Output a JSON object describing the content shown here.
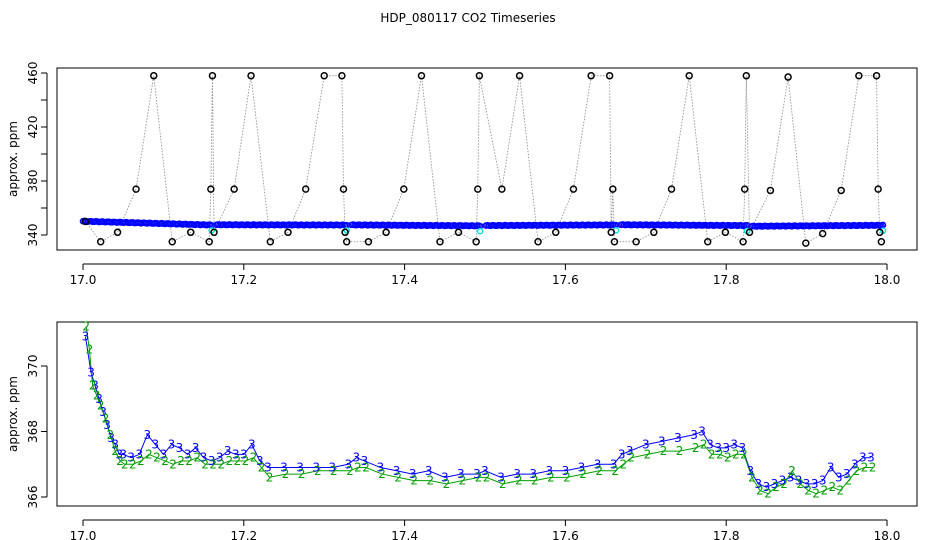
{
  "title": "HDP_080117  CO2 Timeseries",
  "chart_data": [
    {
      "type": "scatter",
      "title": "HDP_080117  CO2 Timeseries",
      "xlabel": "",
      "ylabel": "approx. ppm",
      "xlim": [
        17.0,
        18.0
      ],
      "ylim": [
        331,
        462
      ],
      "x_ticks": [
        17.0,
        17.2,
        17.4,
        17.6,
        17.8,
        18.0
      ],
      "x_tick_labels": [
        "17.0",
        "17.2",
        "17.4",
        "17.6",
        "17.8",
        "18.0"
      ],
      "y_ticks": [
        340,
        360,
        380,
        400,
        420,
        440,
        460
      ],
      "y_tick_labels": [
        "340",
        "",
        "380",
        "",
        "420",
        "",
        "460"
      ],
      "grid": false,
      "series": [
        {
          "style": "blue-points",
          "color": "#0000ff",
          "segments": [
            {
              "x_start": 17.0,
              "x_end": 17.16,
              "y_start": 350.2,
              "y_end": 347.4
            },
            {
              "x_start": 17.166,
              "x_end": 17.328,
              "y_start": 347.6,
              "y_end": 347.4
            },
            {
              "x_start": 17.334,
              "x_end": 17.494,
              "y_start": 347.5,
              "y_end": 346.8
            },
            {
              "x_start": 17.501,
              "x_end": 17.663,
              "y_start": 347.0,
              "y_end": 347.5
            },
            {
              "x_start": 17.669,
              "x_end": 17.826,
              "y_start": 347.6,
              "y_end": 347.0
            },
            {
              "x_start": 17.832,
              "x_end": 17.995,
              "y_start": 346.5,
              "y_end": 347.2
            }
          ]
        },
        {
          "style": "black-circles",
          "color": "#000000",
          "points": [
            [
              17.003,
              350
            ],
            [
              17.022,
              335
            ],
            [
              17.043,
              342
            ],
            [
              17.066,
              374
            ],
            [
              17.088,
              458
            ],
            [
              17.111,
              335
            ],
            [
              17.134,
              342
            ],
            [
              17.157,
              335
            ],
            [
              17.159,
              374
            ],
            [
              17.161,
              458
            ],
            [
              17.163,
              342
            ],
            [
              17.188,
              374
            ],
            [
              17.209,
              458
            ],
            [
              17.233,
              335
            ],
            [
              17.255,
              342
            ],
            [
              17.277,
              374
            ],
            [
              17.3,
              458
            ],
            [
              17.322,
              458
            ],
            [
              17.324,
              374
            ],
            [
              17.326,
              342
            ],
            [
              17.328,
              335
            ],
            [
              17.355,
              335
            ],
            [
              17.377,
              342
            ],
            [
              17.399,
              374
            ],
            [
              17.421,
              458
            ],
            [
              17.444,
              335
            ],
            [
              17.467,
              342
            ],
            [
              17.489,
              335
            ],
            [
              17.491,
              374
            ],
            [
              17.493,
              458
            ],
            [
              17.521,
              374
            ],
            [
              17.543,
              458
            ],
            [
              17.566,
              335
            ],
            [
              17.588,
              342
            ],
            [
              17.61,
              374
            ],
            [
              17.632,
              458
            ],
            [
              17.655,
              458
            ],
            [
              17.657,
              342
            ],
            [
              17.659,
              374
            ],
            [
              17.661,
              335
            ],
            [
              17.688,
              335
            ],
            [
              17.71,
              342
            ],
            [
              17.732,
              374
            ],
            [
              17.754,
              458
            ],
            [
              17.777,
              335
            ],
            [
              17.799,
              342
            ],
            [
              17.821,
              335
            ],
            [
              17.823,
              374
            ],
            [
              17.825,
              458
            ],
            [
              17.829,
              342
            ],
            [
              17.855,
              373
            ],
            [
              17.877,
              457
            ],
            [
              17.899,
              334
            ],
            [
              17.92,
              341
            ],
            [
              17.943,
              373
            ],
            [
              17.965,
              458
            ],
            [
              17.987,
              458
            ],
            [
              17.989,
              374
            ],
            [
              17.991,
              342
            ],
            [
              17.993,
              335
            ]
          ]
        }
      ]
    },
    {
      "type": "scatter",
      "title": "",
      "xlabel": "",
      "ylabel": "approx. ppm",
      "xlim": [
        17.0,
        18.0
      ],
      "ylim": [
        365.7,
        371.6
      ],
      "x_ticks": [
        17.0,
        17.2,
        17.4,
        17.6,
        17.8,
        18.0
      ],
      "x_tick_labels": [
        "17.0",
        "17.2",
        "17.4",
        "17.6",
        "17.8",
        "18.0"
      ],
      "y_ticks": [
        366,
        368,
        370
      ],
      "y_tick_labels": [
        "366",
        "368",
        "370"
      ],
      "grid": false,
      "series": [
        {
          "marker": "3",
          "color": "#0000ff",
          "points": [
            [
              17.003,
              370.9
            ],
            [
              17.01,
              369.8
            ],
            [
              17.015,
              369.4
            ],
            [
              17.02,
              369.0
            ],
            [
              17.025,
              368.6
            ],
            [
              17.03,
              368.2
            ],
            [
              17.035,
              367.8
            ],
            [
              17.04,
              367.6
            ],
            [
              17.045,
              367.3
            ],
            [
              17.05,
              367.3
            ],
            [
              17.06,
              367.2
            ],
            [
              17.07,
              367.3
            ],
            [
              17.08,
              367.9
            ],
            [
              17.09,
              367.6
            ],
            [
              17.1,
              367.3
            ],
            [
              17.11,
              367.6
            ],
            [
              17.12,
              367.5
            ],
            [
              17.13,
              367.3
            ],
            [
              17.14,
              367.5
            ],
            [
              17.15,
              367.2
            ],
            [
              17.16,
              367.1
            ],
            [
              17.17,
              367.2
            ],
            [
              17.18,
              367.4
            ],
            [
              17.19,
              367.3
            ],
            [
              17.2,
              367.3
            ],
            [
              17.21,
              367.6
            ],
            [
              17.22,
              367.1
            ],
            [
              17.23,
              366.9
            ],
            [
              17.25,
              366.9
            ],
            [
              17.27,
              366.9
            ],
            [
              17.29,
              366.9
            ],
            [
              17.31,
              366.9
            ],
            [
              17.33,
              367.0
            ],
            [
              17.34,
              367.2
            ],
            [
              17.35,
              367.1
            ],
            [
              17.37,
              366.9
            ],
            [
              17.39,
              366.8
            ],
            [
              17.41,
              366.7
            ],
            [
              17.43,
              366.8
            ],
            [
              17.45,
              366.6
            ],
            [
              17.47,
              366.7
            ],
            [
              17.49,
              366.7
            ],
            [
              17.5,
              366.8
            ],
            [
              17.52,
              366.6
            ],
            [
              17.54,
              366.7
            ],
            [
              17.56,
              366.7
            ],
            [
              17.58,
              366.8
            ],
            [
              17.6,
              366.8
            ],
            [
              17.62,
              366.9
            ],
            [
              17.64,
              367.0
            ],
            [
              17.66,
              367.0
            ],
            [
              17.67,
              367.3
            ],
            [
              17.68,
              367.4
            ],
            [
              17.7,
              367.6
            ],
            [
              17.72,
              367.7
            ],
            [
              17.74,
              367.8
            ],
            [
              17.76,
              367.9
            ],
            [
              17.77,
              368.0
            ],
            [
              17.78,
              367.6
            ],
            [
              17.79,
              367.5
            ],
            [
              17.8,
              367.5
            ],
            [
              17.81,
              367.6
            ],
            [
              17.82,
              367.5
            ],
            [
              17.83,
              366.8
            ],
            [
              17.84,
              366.4
            ],
            [
              17.85,
              366.3
            ],
            [
              17.86,
              366.4
            ],
            [
              17.87,
              366.5
            ],
            [
              17.88,
              366.6
            ],
            [
              17.89,
              366.5
            ],
            [
              17.9,
              366.4
            ],
            [
              17.91,
              366.4
            ],
            [
              17.92,
              366.5
            ],
            [
              17.93,
              366.9
            ],
            [
              17.94,
              366.6
            ],
            [
              17.95,
              366.7
            ],
            [
              17.96,
              367.0
            ],
            [
              17.97,
              367.2
            ],
            [
              17.98,
              367.2
            ]
          ]
        },
        {
          "marker": "2",
          "color": "#00a000",
          "points": [
            [
              17.004,
              371.2
            ],
            [
              17.008,
              370.5
            ],
            [
              17.012,
              369.4
            ],
            [
              17.017,
              369.1
            ],
            [
              17.022,
              368.8
            ],
            [
              17.028,
              368.4
            ],
            [
              17.034,
              367.9
            ],
            [
              17.04,
              367.4
            ],
            [
              17.046,
              367.1
            ],
            [
              17.052,
              367.0
            ],
            [
              17.062,
              367.0
            ],
            [
              17.072,
              367.1
            ],
            [
              17.082,
              367.3
            ],
            [
              17.092,
              367.2
            ],
            [
              17.102,
              367.1
            ],
            [
              17.112,
              367.0
            ],
            [
              17.122,
              367.1
            ],
            [
              17.132,
              367.1
            ],
            [
              17.142,
              367.2
            ],
            [
              17.152,
              367.0
            ],
            [
              17.162,
              367.0
            ],
            [
              17.172,
              367.0
            ],
            [
              17.182,
              367.1
            ],
            [
              17.192,
              367.1
            ],
            [
              17.202,
              367.1
            ],
            [
              17.212,
              367.2
            ],
            [
              17.222,
              366.9
            ],
            [
              17.232,
              366.6
            ],
            [
              17.252,
              366.7
            ],
            [
              17.272,
              366.7
            ],
            [
              17.292,
              366.8
            ],
            [
              17.312,
              366.8
            ],
            [
              17.332,
              366.8
            ],
            [
              17.342,
              366.9
            ],
            [
              17.352,
              366.9
            ],
            [
              17.372,
              366.7
            ],
            [
              17.392,
              366.6
            ],
            [
              17.412,
              366.5
            ],
            [
              17.432,
              366.5
            ],
            [
              17.452,
              366.4
            ],
            [
              17.472,
              366.5
            ],
            [
              17.492,
              366.6
            ],
            [
              17.502,
              366.6
            ],
            [
              17.522,
              366.4
            ],
            [
              17.542,
              366.5
            ],
            [
              17.562,
              366.5
            ],
            [
              17.582,
              366.6
            ],
            [
              17.602,
              366.6
            ],
            [
              17.622,
              366.7
            ],
            [
              17.642,
              366.8
            ],
            [
              17.662,
              366.8
            ],
            [
              17.672,
              367.0
            ],
            [
              17.682,
              367.2
            ],
            [
              17.702,
              367.3
            ],
            [
              17.722,
              367.4
            ],
            [
              17.742,
              367.4
            ],
            [
              17.762,
              367.5
            ],
            [
              17.772,
              367.6
            ],
            [
              17.782,
              367.3
            ],
            [
              17.792,
              367.3
            ],
            [
              17.802,
              367.2
            ],
            [
              17.812,
              367.3
            ],
            [
              17.822,
              367.3
            ],
            [
              17.832,
              366.6
            ],
            [
              17.842,
              366.2
            ],
            [
              17.852,
              366.1
            ],
            [
              17.862,
              366.3
            ],
            [
              17.872,
              366.4
            ],
            [
              17.882,
              366.8
            ],
            [
              17.892,
              366.4
            ],
            [
              17.902,
              366.2
            ],
            [
              17.912,
              366.1
            ],
            [
              17.922,
              366.2
            ],
            [
              17.932,
              366.3
            ],
            [
              17.942,
              366.2
            ],
            [
              17.952,
              366.5
            ],
            [
              17.962,
              366.8
            ],
            [
              17.972,
              366.9
            ],
            [
              17.982,
              366.9
            ]
          ]
        }
      ]
    }
  ]
}
